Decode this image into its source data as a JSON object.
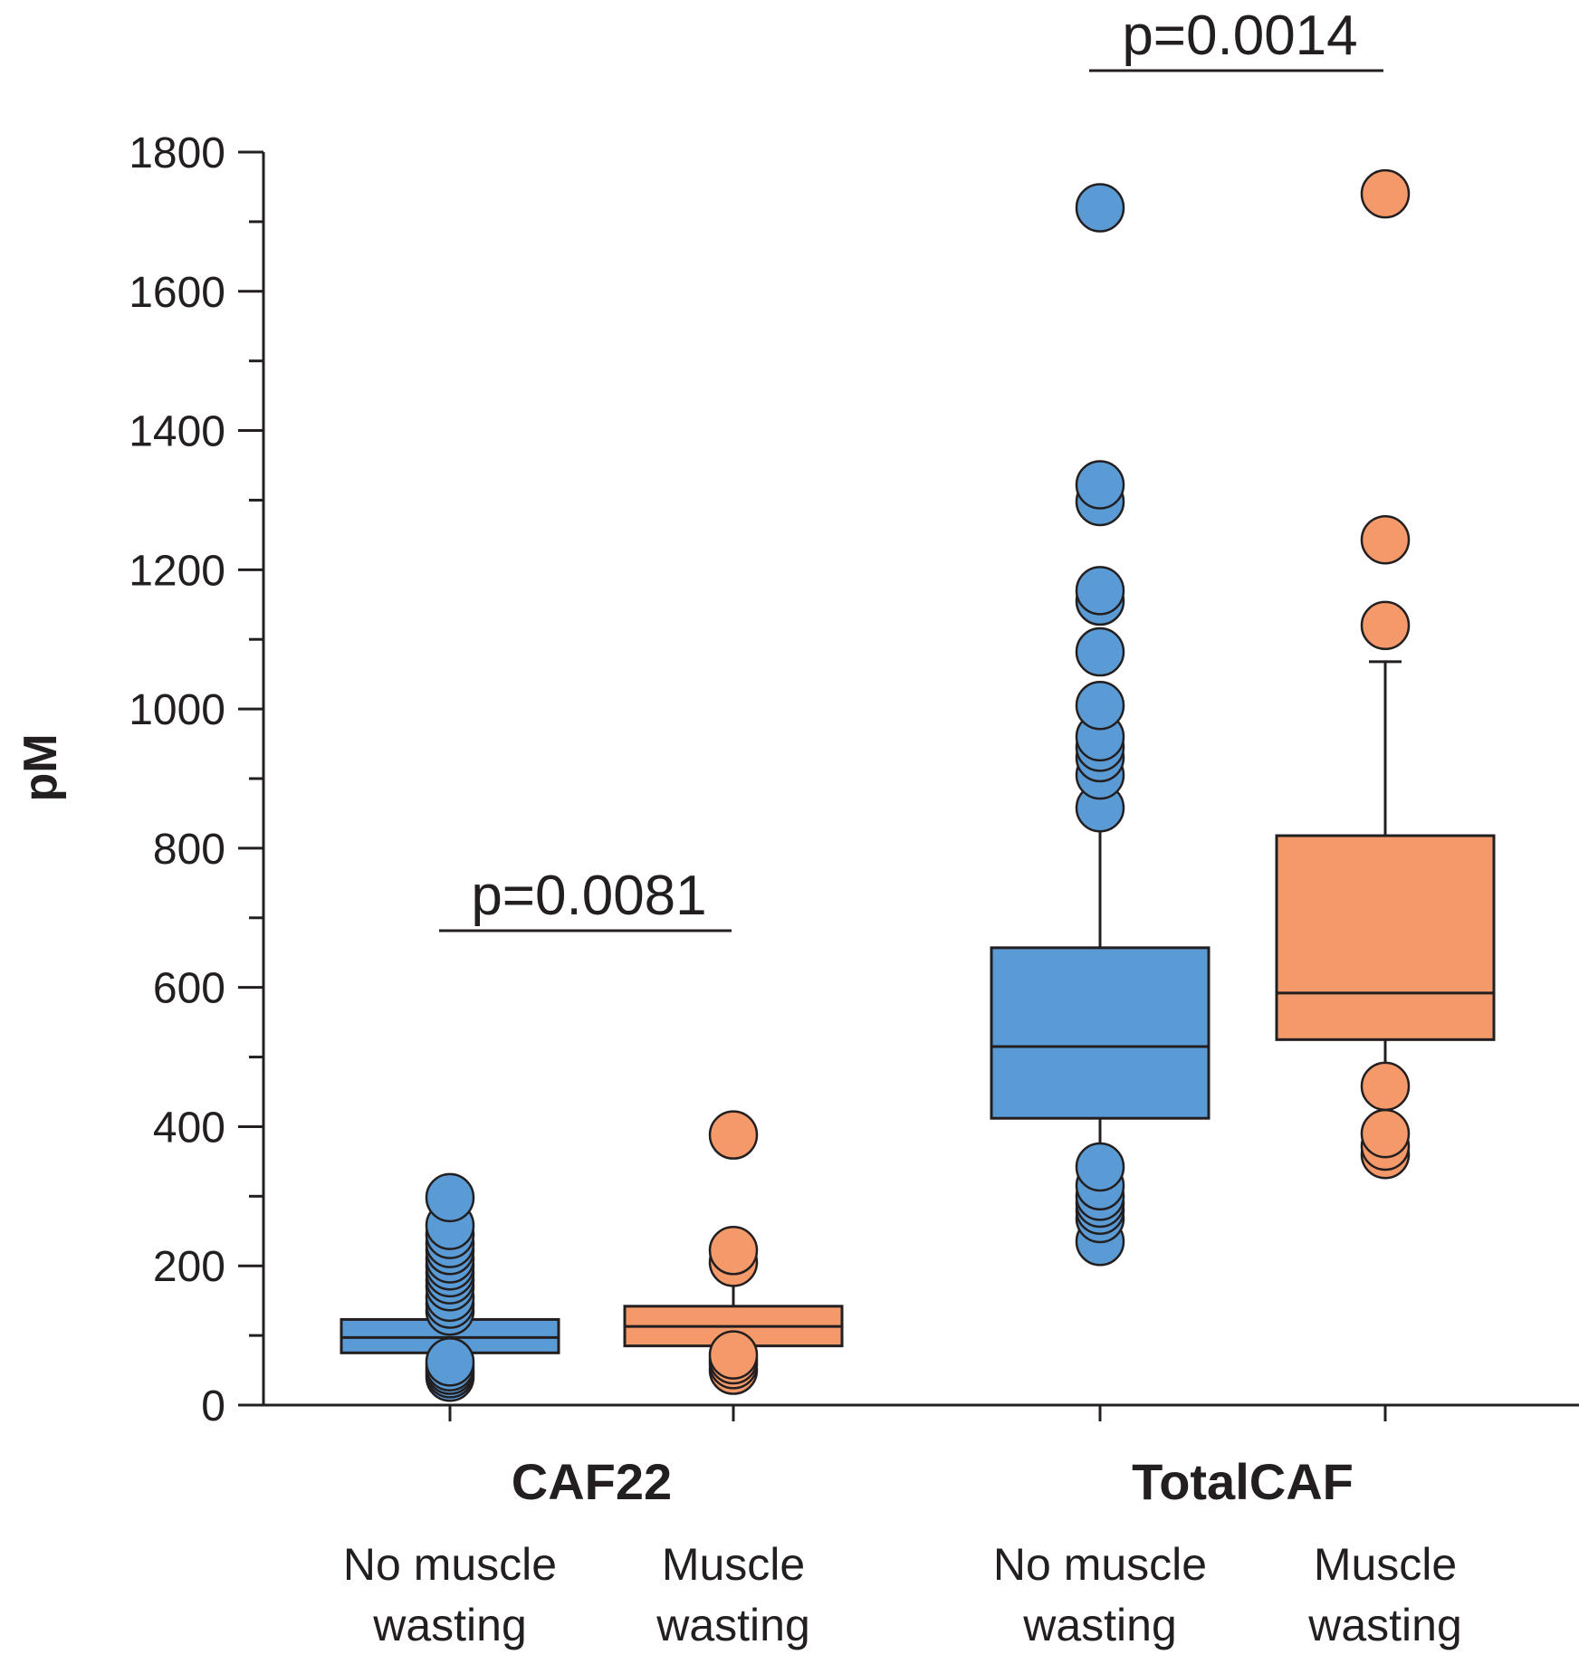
{
  "colors": {
    "no_wasting": "#5b9bd5",
    "wasting": "#f4996a",
    "ink": "#231f20"
  },
  "chart_data": {
    "type": "box",
    "ylabel": "pM",
    "xlabel": "",
    "ylim": [
      0,
      1800
    ],
    "yticks": [
      "0",
      "200",
      "400",
      "600",
      "800",
      "1000",
      "1200",
      "1400",
      "1600",
      "1800"
    ],
    "yminor_step": 100,
    "grid": false,
    "groups": [
      {
        "title": "CAF22",
        "p_value": "p=0.0081",
        "boxes": [
          {
            "label_line1": "No muscle",
            "label_line2": "wasting",
            "color": "#5b9bd5",
            "q1": 75,
            "median": 97,
            "q3": 123,
            "whisker_low": 67,
            "whisker_high": 150,
            "outliers": [
              40,
              45,
              50,
              55,
              62,
              135,
              145,
              155,
              170,
              180,
              190,
              200,
              210,
              222,
              232,
              245,
              258,
              298
            ]
          },
          {
            "label_line1": "Muscle",
            "label_line2": "wasting",
            "color": "#f4996a",
            "q1": 85,
            "median": 113,
            "q3": 142,
            "whisker_low": 85,
            "whisker_high": 200,
            "outliers": [
              50,
              58,
              65,
              72,
              205,
              222,
              388
            ]
          }
        ]
      },
      {
        "title": "TotalCAF",
        "p_value": "p=0.0014",
        "boxes": [
          {
            "label_line1": "No muscle",
            "label_line2": "wasting",
            "color": "#5b9bd5",
            "q1": 412,
            "median": 515,
            "q3": 657,
            "whisker_low": 345,
            "whisker_high": 845,
            "outliers": [
              235,
              268,
              280,
              290,
              300,
              315,
              342,
              858,
              905,
              930,
              945,
              960,
              1005,
              1082,
              1155,
              1170,
              1298,
              1322,
              1720
            ]
          },
          {
            "label_line1": "Muscle",
            "label_line2": "wasting",
            "color": "#f4996a",
            "q1": 525,
            "median": 592,
            "q3": 818,
            "whisker_low": 458,
            "whisker_high": 1068,
            "outliers": [
              360,
              372,
              390,
              458,
              1120,
              1243,
              1740
            ]
          }
        ]
      }
    ]
  }
}
